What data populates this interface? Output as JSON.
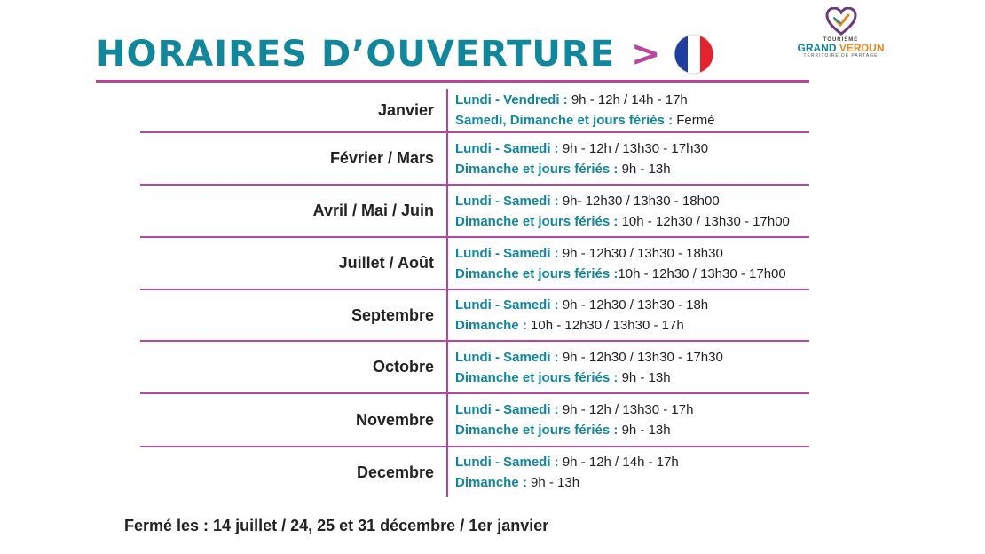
{
  "header": {
    "title": "HORAIRES D’OUVERTURE",
    "arrow": ">",
    "flag_icon": "france-flag-icon"
  },
  "logo": {
    "line1": "TOURISME",
    "brand_a": "GRAND",
    "brand_b": "VERDUN",
    "tagline": "TERRITOIRE DE PARTAGE"
  },
  "colors": {
    "teal": "#12869a",
    "magenta": "#b8469c",
    "text": "#222222"
  },
  "rows": [
    {
      "month": "Janvier",
      "l1_label": "Lundi - Vendredi : ",
      "l1_value": "9h - 12h / 14h - 17h",
      "l2_label": "Samedi, Dimanche et jours fériés : ",
      "l2_value": "Fermé"
    },
    {
      "month": "Février / Mars",
      "l1_label": "Lundi - Samedi : ",
      "l1_value": "9h - 12h / 13h30 - 17h30",
      "l2_label": "Dimanche et jours fériés : ",
      "l2_value": "9h - 13h"
    },
    {
      "month": "Avril / Mai / Juin",
      "l1_label": "Lundi - Samedi :  ",
      "l1_value": "9h- 12h30 / 13h30 - 18h00",
      "l2_label": "Dimanche et jours fériés  : ",
      "l2_value": "10h - 12h30 / 13h30 - 17h00"
    },
    {
      "month": "Juillet / Août",
      "l1_label": "Lundi - Samedi : ",
      "l1_value": "9h - 12h30 / 13h30 - 18h30",
      "l2_label": "Dimanche et jours fériés :",
      "l2_value": "10h - 12h30 / 13h30 - 17h00"
    },
    {
      "month": "Septembre",
      "l1_label": "Lundi - Samedi :  ",
      "l1_value": "9h - 12h30 / 13h30 - 18h",
      "l2_label": "Dimanche : ",
      "l2_value": "10h - 12h30 / 13h30 - 17h"
    },
    {
      "month": "Octobre",
      "l1_label": "Lundi - Samedi :  ",
      "l1_value": "9h - 12h30 / 13h30 - 17h30",
      "l2_label": "Dimanche et jours fériés : ",
      "l2_value": "9h - 13h"
    },
    {
      "month": "Novembre",
      "l1_label": "Lundi - Samedi :  ",
      "l1_value": "9h - 12h / 13h30 - 17h",
      "l2_label": "Dimanche et jours fériés : ",
      "l2_value": "9h - 13h"
    },
    {
      "month": "Decembre",
      "l1_label": "Lundi - Samedi : ",
      "l1_value": "9h - 12h / 14h - 17h",
      "l2_label": "Dimanche :  ",
      "l2_value": "9h - 13h"
    }
  ],
  "footer": {
    "text": "Fermé les : 14 juillet / 24, 25 et 31 décembre / 1er janvier"
  }
}
